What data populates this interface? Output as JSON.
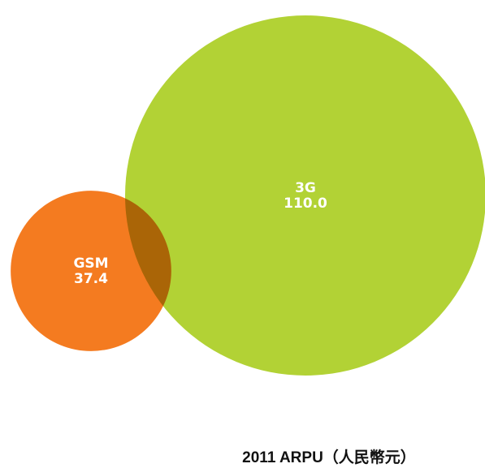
{
  "chart_data": {
    "type": "bubble",
    "title": "2011 ARPU（人民幣元）",
    "categories": [
      "GSM",
      "3G"
    ],
    "values": [
      37.4,
      110.0
    ],
    "value_labels": [
      "37.4",
      "110.0"
    ],
    "colors": [
      "#f47b20",
      "#b2d235"
    ]
  }
}
